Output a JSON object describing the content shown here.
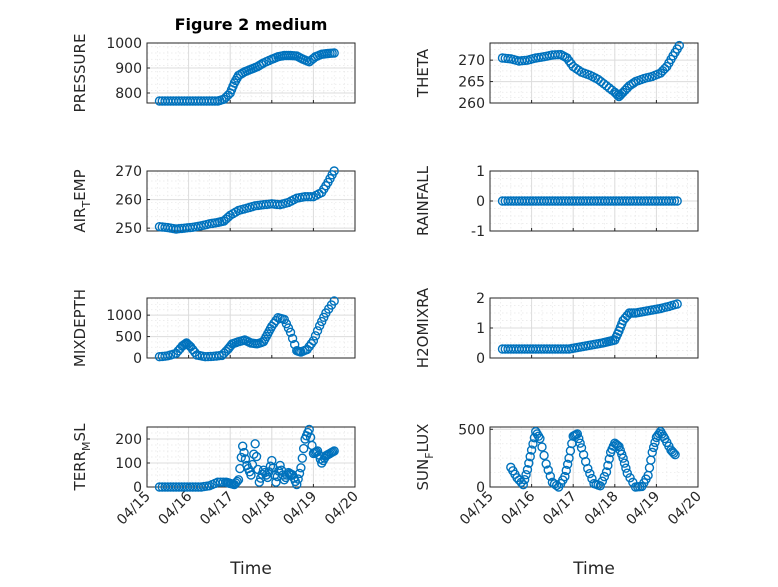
{
  "figure": {
    "title": "Figure 2 medium",
    "marker_color": "#0072BD",
    "x_ticks": [
      "04/15",
      "04/16",
      "04/17",
      "04/18",
      "04/19",
      "04/20"
    ],
    "x_label": "Time"
  },
  "chart_data": [
    {
      "type": "scatter",
      "title": "Figure 2 medium",
      "ylabel": "PRESSURE",
      "xlim": [
        0,
        5
      ],
      "ylim": [
        760,
        1000
      ],
      "yticks": [
        800,
        900,
        1000
      ],
      "x": [
        0.3,
        0.5,
        0.7,
        0.9,
        1.1,
        1.3,
        1.5,
        1.7,
        1.85,
        2.0,
        2.1,
        2.2,
        2.35,
        2.5,
        2.65,
        2.8,
        3.0,
        3.15,
        3.3,
        3.45,
        3.6,
        3.75,
        3.9,
        4.05,
        4.2,
        4.35,
        4.5
      ],
      "values": [
        768,
        768,
        768,
        768,
        768,
        768,
        768,
        768,
        775,
        800,
        840,
        870,
        885,
        895,
        905,
        920,
        935,
        945,
        950,
        950,
        948,
        935,
        925,
        945,
        955,
        958,
        960
      ]
    },
    {
      "type": "scatter",
      "ylabel": "THETA",
      "xlim": [
        0,
        5
      ],
      "ylim": [
        260,
        274
      ],
      "yticks": [
        260,
        265,
        270
      ],
      "x": [
        0.3,
        0.5,
        0.7,
        0.9,
        1.1,
        1.3,
        1.5,
        1.7,
        1.85,
        2.0,
        2.2,
        2.4,
        2.6,
        2.8,
        3.0,
        3.1,
        3.2,
        3.35,
        3.5,
        3.7,
        3.9,
        4.1,
        4.25,
        4.4,
        4.55
      ],
      "values": [
        270.5,
        270.3,
        269.8,
        270,
        270.5,
        270.8,
        271.2,
        271.3,
        270.5,
        268.5,
        267.2,
        266.5,
        265.5,
        264,
        262.5,
        261.5,
        262.5,
        264,
        265,
        265.7,
        266.2,
        267,
        268.5,
        271,
        273.4
      ]
    },
    {
      "type": "scatter",
      "ylabel": "AIR_TEMP",
      "xlim": [
        0,
        5
      ],
      "ylim": [
        249,
        270
      ],
      "yticks": [
        250,
        260,
        270
      ],
      "x": [
        0.3,
        0.5,
        0.7,
        0.9,
        1.1,
        1.3,
        1.5,
        1.7,
        1.85,
        2.0,
        2.2,
        2.4,
        2.6,
        2.8,
        3.0,
        3.2,
        3.4,
        3.6,
        3.8,
        4.0,
        4.2,
        4.35,
        4.5
      ],
      "values": [
        250.5,
        250.2,
        249.7,
        250,
        250.3,
        250.8,
        251.5,
        252,
        252.5,
        254.5,
        256.2,
        257,
        257.8,
        258.2,
        258.5,
        258.2,
        259,
        260.5,
        261,
        261,
        262.5,
        266,
        270
      ]
    },
    {
      "type": "scatter",
      "ylabel": "RAINFALL",
      "xlim": [
        0,
        5
      ],
      "ylim": [
        -1,
        1
      ],
      "yticks": [
        -1,
        0,
        1
      ],
      "x": [
        0.3,
        0.5,
        0.7,
        0.9,
        1.1,
        1.3,
        1.5,
        1.7,
        1.9,
        2.1,
        2.3,
        2.5,
        2.7,
        2.9,
        3.1,
        3.3,
        3.5,
        3.7,
        3.9,
        4.1,
        4.3,
        4.5
      ],
      "values": [
        0,
        0,
        0,
        0,
        0,
        0,
        0,
        0,
        0,
        0,
        0,
        0,
        0,
        0,
        0,
        0,
        0,
        0,
        0,
        0,
        0,
        0
      ]
    },
    {
      "type": "scatter",
      "ylabel": "MIXDEPTH",
      "xlim": [
        0,
        5
      ],
      "ylim": [
        0,
        1400
      ],
      "yticks": [
        0,
        500,
        1000
      ],
      "x": [
        0.3,
        0.5,
        0.7,
        0.85,
        0.95,
        1.05,
        1.2,
        1.4,
        1.6,
        1.8,
        1.95,
        2.05,
        2.2,
        2.35,
        2.5,
        2.65,
        2.8,
        2.9,
        3.0,
        3.15,
        3.3,
        3.45,
        3.6,
        3.7,
        3.85,
        4.0,
        4.15,
        4.3,
        4.5
      ],
      "values": [
        30,
        50,
        110,
        280,
        350,
        260,
        70,
        30,
        40,
        60,
        210,
        330,
        380,
        420,
        350,
        330,
        380,
        560,
        740,
        940,
        900,
        600,
        170,
        140,
        200,
        400,
        750,
        1050,
        1330
      ]
    },
    {
      "type": "scatter",
      "ylabel": "H2OMIXRA",
      "xlim": [
        0,
        5
      ],
      "ylim": [
        0,
        2
      ],
      "yticks": [
        0,
        1,
        2
      ],
      "x": [
        0.3,
        0.5,
        0.7,
        0.9,
        1.1,
        1.3,
        1.5,
        1.7,
        1.9,
        2.1,
        2.3,
        2.5,
        2.7,
        2.85,
        3.0,
        3.1,
        3.2,
        3.35,
        3.5,
        3.7,
        3.9,
        4.1,
        4.3,
        4.5
      ],
      "values": [
        0.3,
        0.3,
        0.3,
        0.3,
        0.3,
        0.3,
        0.3,
        0.3,
        0.3,
        0.35,
        0.4,
        0.45,
        0.5,
        0.55,
        0.6,
        0.9,
        1.25,
        1.5,
        1.5,
        1.55,
        1.6,
        1.65,
        1.72,
        1.8
      ]
    },
    {
      "type": "scatter",
      "ylabel": "TERR_MSL",
      "xlim": [
        0,
        5
      ],
      "ylim": [
        0,
        250
      ],
      "yticks": [
        0,
        100,
        200
      ],
      "x": [
        0.3,
        0.5,
        0.7,
        0.9,
        1.1,
        1.3,
        1.5,
        1.7,
        1.9,
        2.0,
        2.1,
        2.2,
        2.3,
        2.4,
        2.5,
        2.6,
        2.7,
        2.8,
        2.9,
        3.0,
        3.1,
        3.2,
        3.3,
        3.4,
        3.5,
        3.6,
        3.7,
        3.8,
        3.9,
        4.0,
        4.1,
        4.2,
        4.3,
        4.4,
        4.5
      ],
      "values": [
        0,
        0,
        0,
        0,
        0,
        0,
        5,
        20,
        20,
        15,
        10,
        30,
        170,
        90,
        50,
        180,
        20,
        70,
        40,
        110,
        20,
        90,
        30,
        60,
        50,
        10,
        80,
        200,
        240,
        140,
        150,
        100,
        130,
        140,
        150
      ]
    },
    {
      "type": "scatter",
      "ylabel": "SUN_FLUX",
      "xlim": [
        0,
        5
      ],
      "ylim": [
        0,
        520
      ],
      "yticks": [
        0,
        500
      ],
      "x": [
        0.5,
        0.65,
        0.8,
        0.9,
        1.0,
        1.1,
        1.2,
        1.35,
        1.5,
        1.65,
        1.8,
        1.9,
        2.0,
        2.1,
        2.2,
        2.35,
        2.5,
        2.65,
        2.8,
        2.9,
        3.0,
        3.1,
        3.2,
        3.3,
        3.5,
        3.65,
        3.8,
        3.9,
        4.0,
        4.1,
        4.2,
        4.35,
        4.45
      ],
      "values": [
        170,
        80,
        20,
        150,
        320,
        480,
        420,
        200,
        40,
        0,
        90,
        250,
        440,
        460,
        340,
        160,
        30,
        10,
        130,
        300,
        380,
        350,
        250,
        120,
        0,
        5,
        100,
        300,
        430,
        480,
        420,
        320,
        280
      ]
    }
  ]
}
